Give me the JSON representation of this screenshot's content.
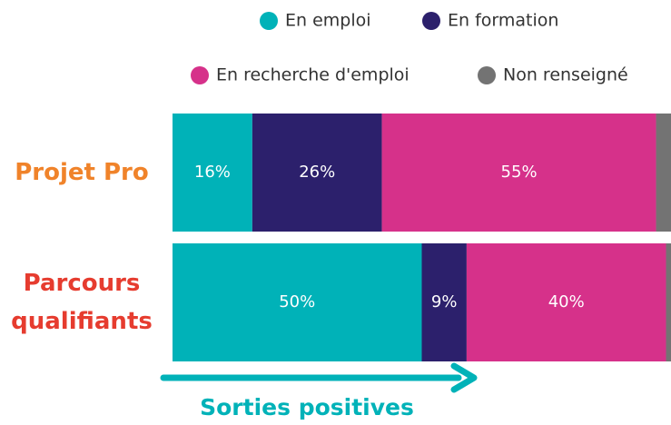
{
  "chart_data": {
    "type": "stacked-bar-horizontal",
    "categories": [
      "Projet Pro",
      "Parcours qualifiants"
    ],
    "category_colors": [
      "#f0832a",
      "#e63c2f"
    ],
    "series": [
      {
        "name": "En emploi",
        "color": "#00b2b8",
        "values": [
          16,
          50
        ],
        "value_labels": [
          "16%",
          "50%"
        ]
      },
      {
        "name": "En formation",
        "color": "#2c206c",
        "values": [
          26,
          9
        ],
        "value_labels": [
          "26%",
          "9%"
        ]
      },
      {
        "name": "En recherche d'emploi",
        "color": "#d6318a",
        "values": [
          55,
          40
        ],
        "value_labels": [
          "55%",
          "40%"
        ]
      },
      {
        "name": "Non renseigné",
        "color": "#737373",
        "values": [
          3,
          1
        ],
        "value_labels": [
          null,
          null
        ]
      }
    ],
    "xlim": [
      0,
      100
    ],
    "annotation": "Sorties positives",
    "annotation_color": "#00b2b8"
  }
}
